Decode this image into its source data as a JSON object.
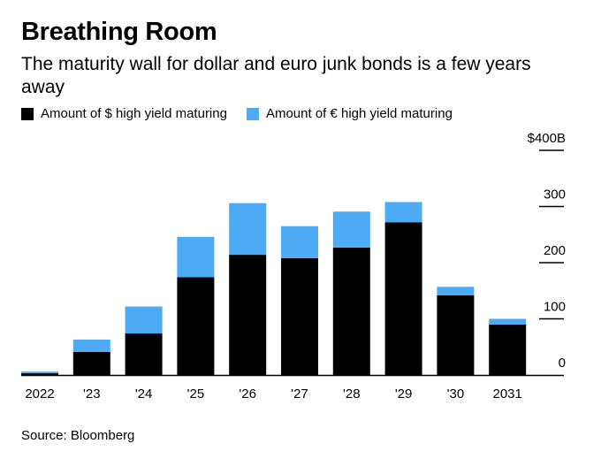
{
  "title": "Breathing Room",
  "subtitle": "The maturity wall for dollar and euro junk bonds is a few years away",
  "source": "Source: Bloomberg",
  "colors": {
    "usd": "#000000",
    "eur": "#4dabf5",
    "axis": "#000000"
  },
  "chart_data": {
    "type": "bar",
    "stacked": true,
    "categories": [
      "2022",
      "'23",
      "'24",
      "'25",
      "'26",
      "'27",
      "'28",
      "'29",
      "'30",
      "2031"
    ],
    "series": [
      {
        "name": "Amount of $ high yield maturing",
        "values": [
          3,
          41,
          74,
          174,
          214,
          208,
          227,
          272,
          142,
          90
        ]
      },
      {
        "name": "Amount of € high yield maturing",
        "values": [
          3,
          22,
          48,
          72,
          92,
          57,
          64,
          36,
          15,
          10
        ]
      }
    ],
    "ylim": [
      0,
      400
    ],
    "yticks": [
      0,
      100,
      200,
      300,
      400
    ],
    "ytick_labels": [
      "0",
      "100",
      "200",
      "300",
      "$400B"
    ],
    "legend_position": "top-left"
  }
}
